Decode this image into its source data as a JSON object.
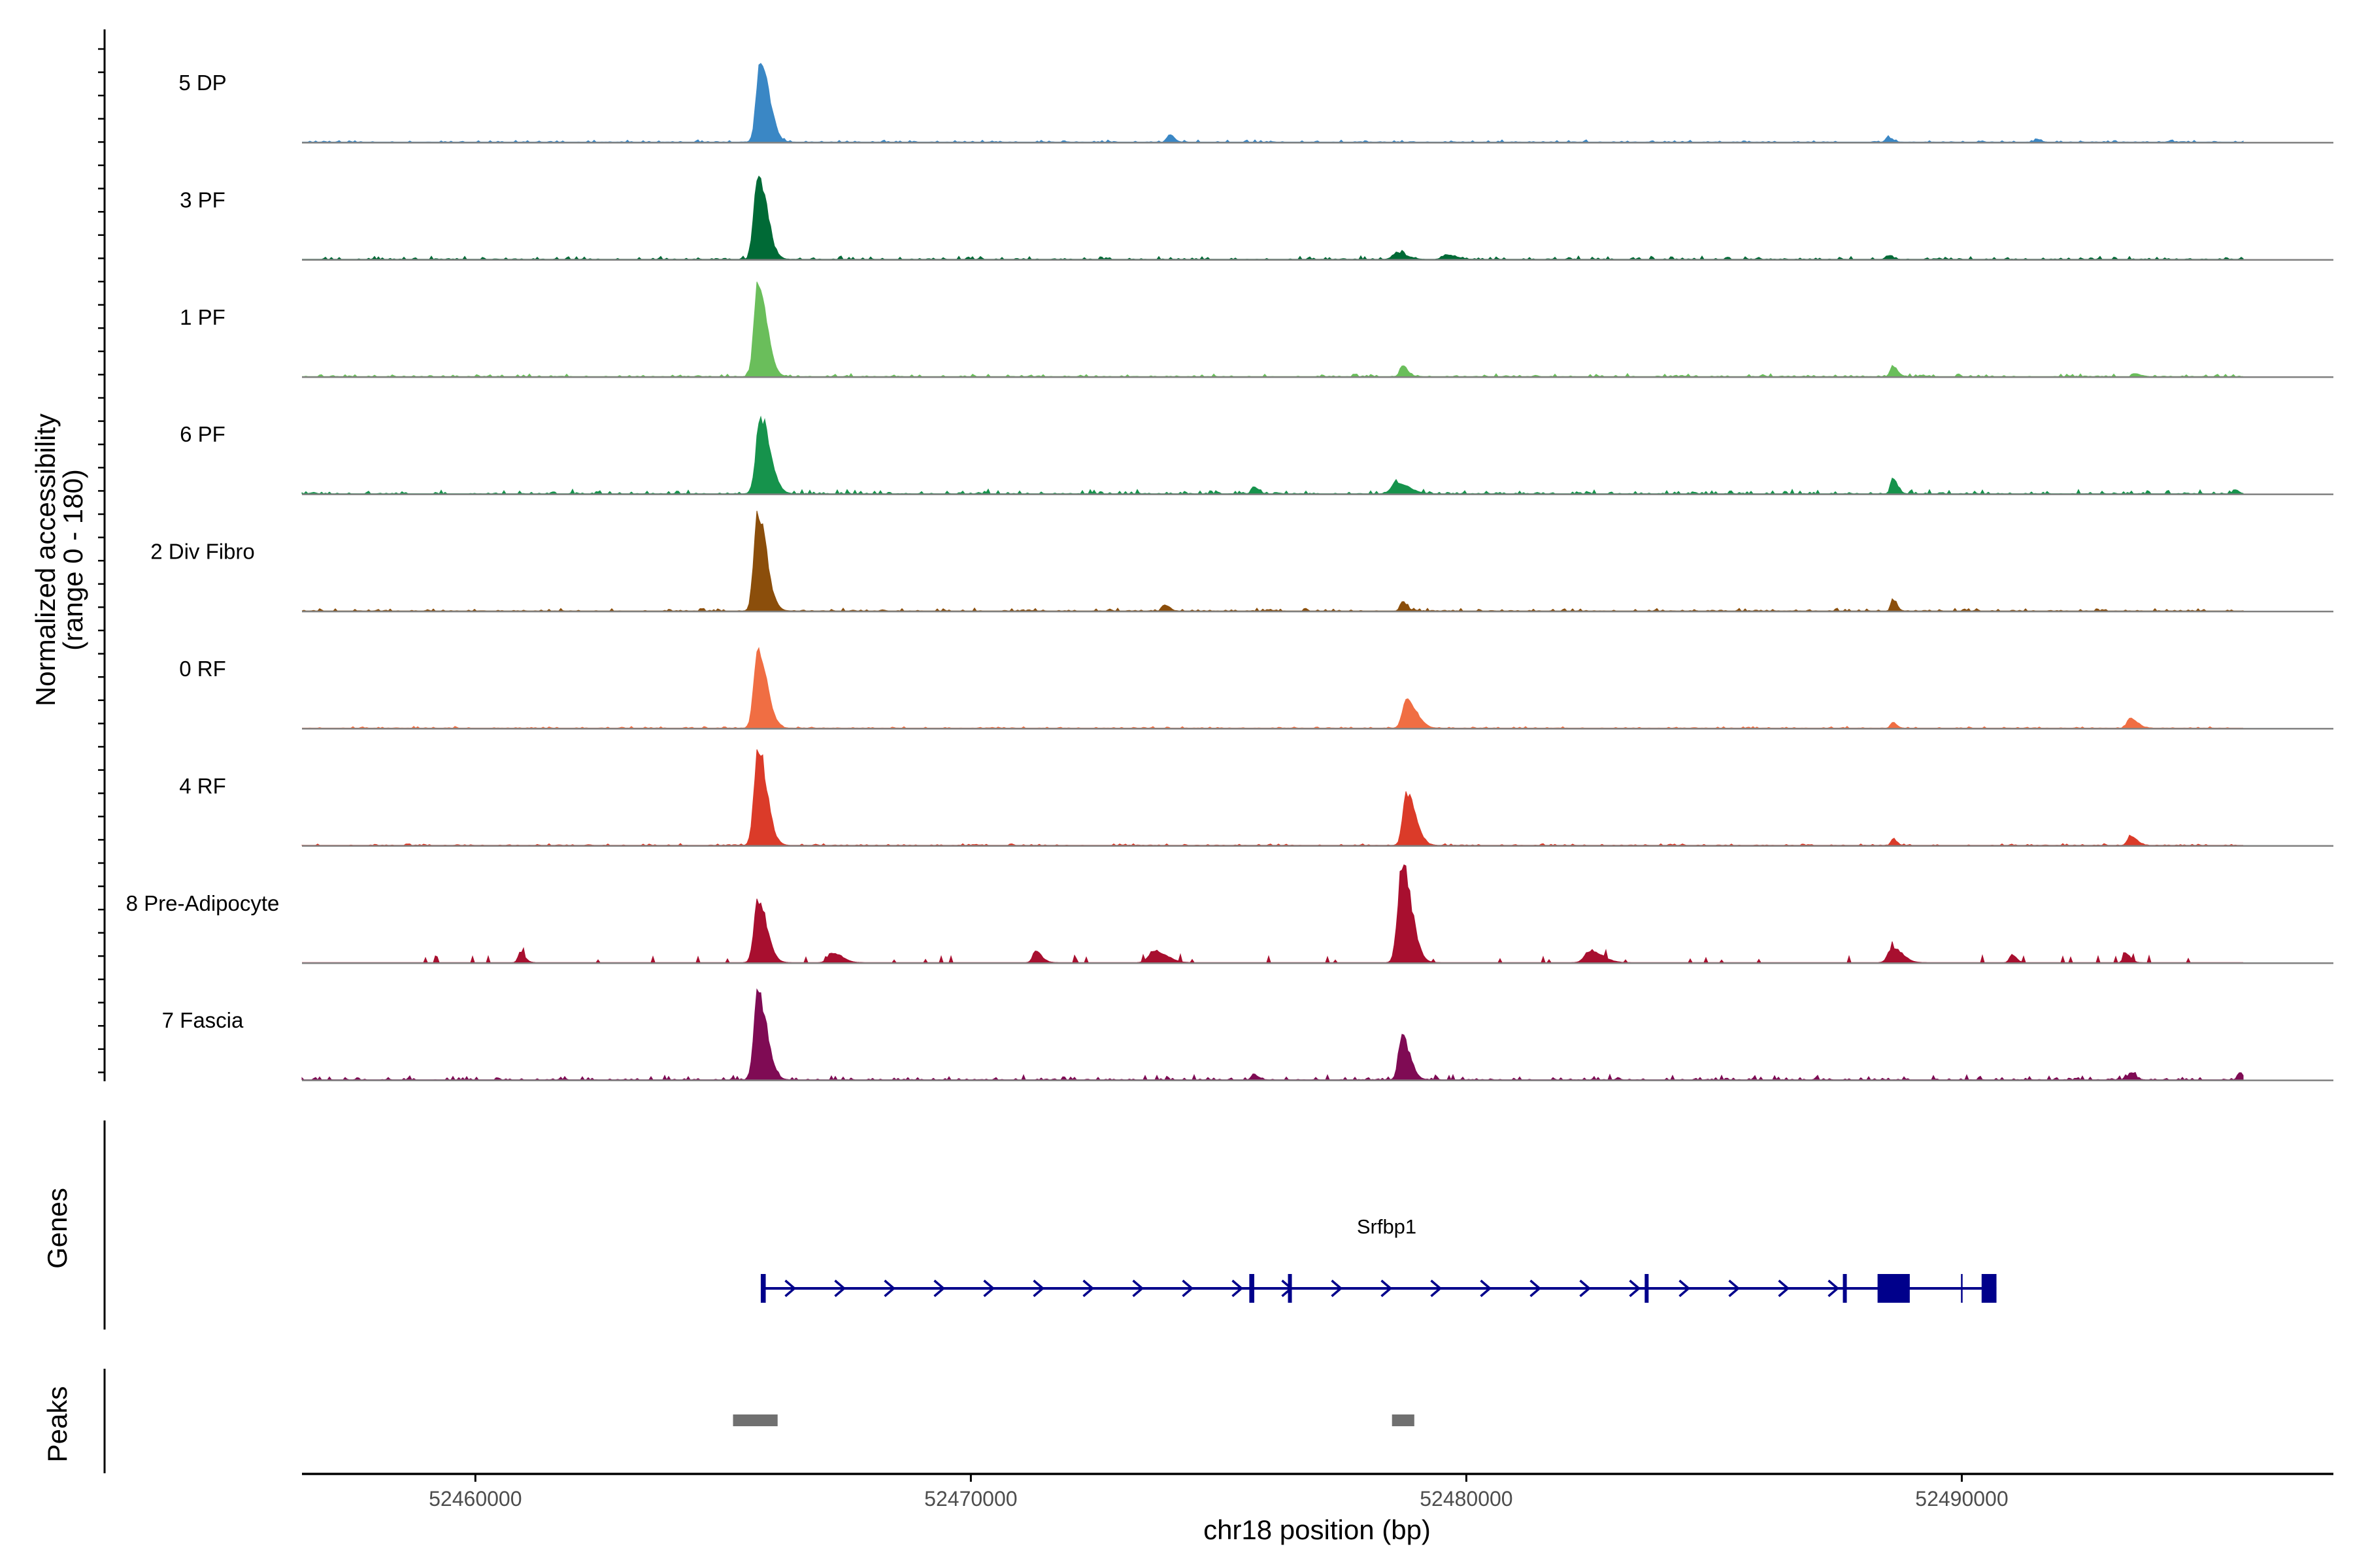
{
  "chart_data": {
    "type": "area",
    "chromosome": "chr18",
    "xlabel": "chr18 position (bp)",
    "ylabel": "Normalized accessibility",
    "ylabel_range": "(range 0 - 180)",
    "xlim": [
      52456500,
      52497500
    ],
    "ylim": [
      0,
      180
    ],
    "x_ticks": [
      {
        "value": 52460000,
        "label": "52460000"
      },
      {
        "value": 52470000,
        "label": "52470000"
      },
      {
        "value": 52480000,
        "label": "52480000"
      },
      {
        "value": 52490000,
        "label": "52490000"
      }
    ],
    "series": [
      {
        "name": "5 DP",
        "color": "#3a87c5",
        "peaks": [
          [
            52465750,
            155,
            110
          ],
          [
            52474000,
            14,
            60
          ],
          [
            52488500,
            9,
            60
          ],
          [
            52491500,
            6,
            50
          ]
        ],
        "noise": 4,
        "sparse": false
      },
      {
        "name": "3 PF",
        "color": "#006a36",
        "peaks": [
          [
            52465700,
            160,
            110
          ],
          [
            52478600,
            12,
            120
          ],
          [
            52479600,
            8,
            120
          ],
          [
            52488500,
            7,
            60
          ]
        ],
        "noise": 6,
        "sparse": false
      },
      {
        "name": "1 PF",
        "color": "#6abe5b",
        "peaks": [
          [
            52465700,
            160,
            110
          ],
          [
            52478700,
            18,
            70
          ],
          [
            52488600,
            20,
            60
          ],
          [
            52493500,
            5,
            60
          ]
        ],
        "noise": 5,
        "sparse": false
      },
      {
        "name": "6 PF",
        "color": "#16934c",
        "peaks": [
          [
            52465750,
            140,
            120
          ],
          [
            52478600,
            20,
            150
          ],
          [
            52488600,
            28,
            60
          ],
          [
            52475700,
            12,
            60
          ],
          [
            52495500,
            8,
            50
          ]
        ],
        "noise": 8,
        "sparse": false
      },
      {
        "name": "2 Div Fibro",
        "color": "#8b4e0b",
        "peaks": [
          [
            52465700,
            175,
            110
          ],
          [
            52478700,
            18,
            60
          ],
          [
            52488600,
            22,
            50
          ],
          [
            52473900,
            12,
            60
          ]
        ],
        "noise": 5,
        "sparse": false
      },
      {
        "name": "0 RF",
        "color": "#f06e43",
        "peaks": [
          [
            52465700,
            150,
            110
          ],
          [
            52478800,
            52,
            120
          ],
          [
            52493400,
            18,
            90
          ],
          [
            52488600,
            10,
            50
          ]
        ],
        "noise": 3,
        "sparse": false
      },
      {
        "name": "4 RF",
        "color": "#db3b29",
        "peaks": [
          [
            52465700,
            175,
            110
          ],
          [
            52478800,
            95,
            110
          ],
          [
            52493400,
            18,
            80
          ],
          [
            52488600,
            12,
            50
          ]
        ],
        "noise": 3,
        "sparse": false
      },
      {
        "name": "8 Pre-Adipocyte",
        "color": "#a80f2f",
        "peaks": [
          [
            52465700,
            115,
            110
          ],
          [
            52478700,
            170,
            120
          ],
          [
            52460900,
            18,
            60
          ],
          [
            52471300,
            20,
            80
          ],
          [
            52473700,
            22,
            150
          ],
          [
            52482500,
            22,
            150
          ],
          [
            52488600,
            28,
            120
          ],
          [
            52491000,
            14,
            60
          ],
          [
            52493300,
            18,
            60
          ],
          [
            52467200,
            18,
            120
          ]
        ],
        "noise": 8,
        "sparse": true
      },
      {
        "name": "7 Fascia",
        "color": "#7f0b54",
        "peaks": [
          [
            52465700,
            160,
            110
          ],
          [
            52478700,
            75,
            100
          ],
          [
            52495600,
            12,
            60
          ],
          [
            52493400,
            14,
            60
          ],
          [
            52475700,
            10,
            60
          ]
        ],
        "noise": 9,
        "sparse": false
      }
    ],
    "genes": [
      {
        "name": "Srfbp1",
        "strand": "+",
        "start": 52465820,
        "end": 52490700,
        "exons": [
          [
            52465760,
            52465860
          ],
          [
            52475620,
            52475720
          ],
          [
            52476400,
            52476470
          ],
          [
            52483600,
            52483660
          ],
          [
            52487600,
            52487660
          ],
          [
            52488300,
            52488950
          ]
        ],
        "utr": [
          [
            52490400,
            52490700
          ]
        ],
        "line_marks": [
          52490000
        ]
      }
    ],
    "peaks_track": [
      {
        "start": 52465200,
        "end": 52466100
      },
      {
        "start": 52478500,
        "end": 52478950
      }
    ],
    "track_titles": {
      "genes": "Genes",
      "peaks": "Peaks"
    },
    "colors": {
      "gene": "#00008b",
      "peak": "#707070",
      "baseline": "#808080"
    }
  }
}
